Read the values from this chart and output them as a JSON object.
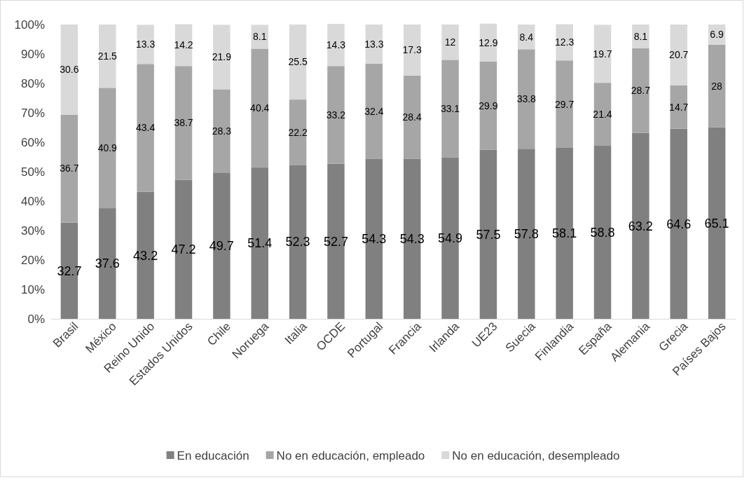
{
  "chart_data": {
    "type": "bar",
    "stacked": true,
    "data_labels": true,
    "legend": "bottom",
    "grid": false,
    "categories": [
      "Brasil",
      "México",
      "Reino Unido",
      "Estados Unidos",
      "Chile",
      "Noruega",
      "Italia",
      "OCDE",
      "Portugal",
      "Francia",
      "Irlanda",
      "UE23",
      "Suecia",
      "Finlandia",
      "España",
      "Alemania",
      "Grecia",
      "Países Bajos"
    ],
    "series": [
      {
        "name": "En educación",
        "color": "#808080",
        "values": [
          32.7,
          37.6,
          43.2,
          47.2,
          49.7,
          51.4,
          52.3,
          52.7,
          54.3,
          54.3,
          54.9,
          57.5,
          57.8,
          58.1,
          58.8,
          63.2,
          64.6,
          65.1
        ]
      },
      {
        "name": "No en educación, empleado",
        "color": "#a6a6a6",
        "values": [
          36.7,
          40.9,
          43.4,
          38.7,
          28.3,
          40.4,
          22.2,
          33.2,
          32.4,
          28.4,
          33.1,
          29.9,
          33.8,
          29.7,
          21.4,
          28.7,
          14.7,
          28
        ]
      },
      {
        "name": "No en educación, desempleado",
        "color": "#d9d9d9",
        "values": [
          30.6,
          21.5,
          13.3,
          14.2,
          21.9,
          8.1,
          25.5,
          14.3,
          13.3,
          17.3,
          12,
          12.9,
          8.4,
          12.3,
          19.7,
          8.1,
          20.7,
          6.9
        ]
      }
    ],
    "ylim": [
      0,
      100
    ],
    "yticks": [
      {
        "value": 0,
        "label": "0%"
      },
      {
        "value": 10,
        "label": "10%"
      },
      {
        "value": 20,
        "label": "20%"
      },
      {
        "value": 30,
        "label": "30%"
      },
      {
        "value": 40,
        "label": "40%"
      },
      {
        "value": 50,
        "label": "50%"
      },
      {
        "value": 60,
        "label": "60%"
      },
      {
        "value": 70,
        "label": "70%"
      },
      {
        "value": 80,
        "label": "80%"
      },
      {
        "value": 90,
        "label": "90%"
      },
      {
        "value": 100,
        "label": "100%"
      }
    ]
  }
}
